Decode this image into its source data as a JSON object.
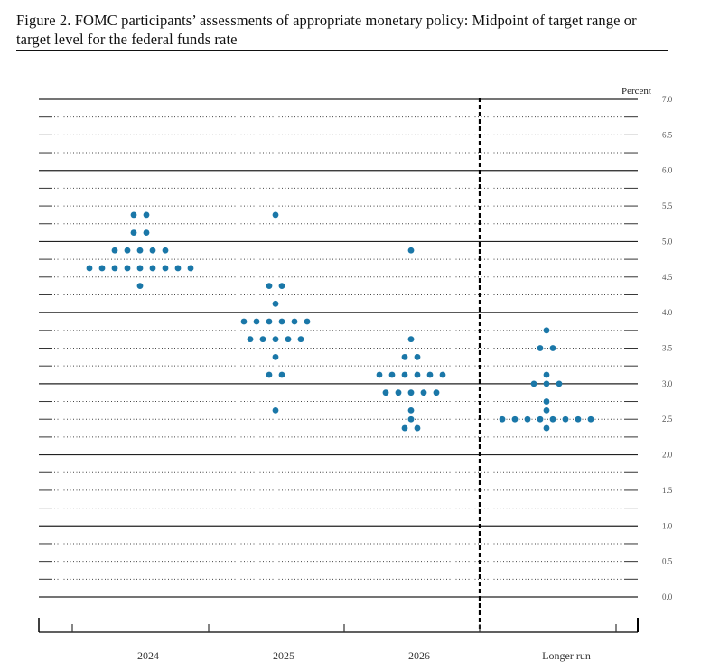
{
  "figure": {
    "title": "Figure 2.  FOMC participants’ assessments of appropriate monetary policy: Midpoint of target range or target level for the federal funds rate"
  },
  "chart_data": {
    "type": "scatter",
    "subtype": "dot-plot",
    "title": "FOMC participants’ assessments of appropriate monetary policy: Midpoint of target range or target level for the federal funds rate",
    "xlabel": "",
    "ylabel": "Percent",
    "ylim": [
      0.0,
      7.0
    ],
    "yticks": [
      "0.0",
      "0.5",
      "1.0",
      "1.5",
      "2.0",
      "2.5",
      "3.0",
      "3.5",
      "4.0",
      "4.5",
      "5.0",
      "5.5",
      "6.0",
      "6.5",
      "7.0"
    ],
    "categories": [
      "2024",
      "2025",
      "2026",
      "Longer run"
    ],
    "grid": {
      "major_every": 1.0,
      "minor_every": 0.25,
      "minor_style": "dotted"
    },
    "separator_before": "Longer run",
    "dot_color": "#1a77a8",
    "series": [
      {
        "name": "2024",
        "points": [
          {
            "value": 5.375,
            "count": 2
          },
          {
            "value": 5.125,
            "count": 2
          },
          {
            "value": 4.875,
            "count": 5
          },
          {
            "value": 4.625,
            "count": 9
          },
          {
            "value": 4.375,
            "count": 1
          }
        ]
      },
      {
        "name": "2025",
        "points": [
          {
            "value": 5.375,
            "count": 1
          },
          {
            "value": 4.375,
            "count": 2
          },
          {
            "value": 4.125,
            "count": 1
          },
          {
            "value": 3.875,
            "count": 6
          },
          {
            "value": 3.625,
            "count": 5
          },
          {
            "value": 3.375,
            "count": 1
          },
          {
            "value": 3.125,
            "count": 2
          },
          {
            "value": 2.625,
            "count": 1
          }
        ]
      },
      {
        "name": "2026",
        "points": [
          {
            "value": 4.875,
            "count": 1
          },
          {
            "value": 3.625,
            "count": 1
          },
          {
            "value": 3.375,
            "count": 2
          },
          {
            "value": 3.125,
            "count": 6
          },
          {
            "value": 2.875,
            "count": 5
          },
          {
            "value": 2.625,
            "count": 1
          },
          {
            "value": 2.5,
            "count": 1
          },
          {
            "value": 2.375,
            "count": 2
          }
        ]
      },
      {
        "name": "Longer run",
        "points": [
          {
            "value": 3.75,
            "count": 1
          },
          {
            "value": 3.5,
            "count": 2
          },
          {
            "value": 3.125,
            "count": 1
          },
          {
            "value": 3.0,
            "count": 3
          },
          {
            "value": 2.75,
            "count": 1
          },
          {
            "value": 2.625,
            "count": 1
          },
          {
            "value": 2.5,
            "count": 8
          },
          {
            "value": 2.375,
            "count": 1
          }
        ]
      }
    ]
  }
}
